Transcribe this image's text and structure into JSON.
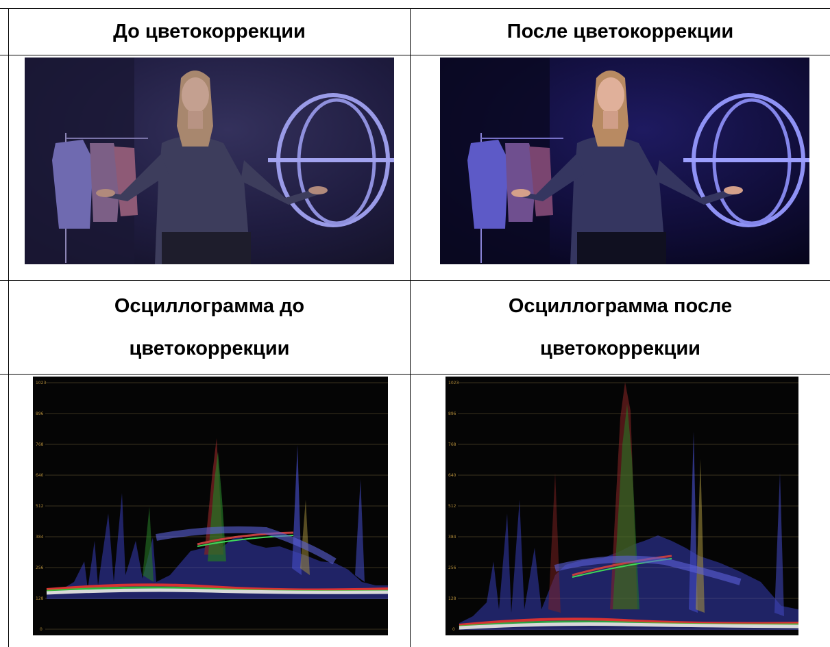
{
  "table": {
    "header_before": "До цветокоррекции",
    "header_after": "После цветокоррекции",
    "scope_before_line1": "Осциллограмма до",
    "scope_before_line2": "цветокоррекции",
    "scope_after_line1": "Осциллограмма после",
    "scope_after_line2": "цветокоррекции"
  },
  "scope_ticks": [
    "1023",
    "896",
    "768",
    "640",
    "512",
    "384",
    "256",
    "128",
    "0"
  ],
  "colors": {
    "border": "#000000",
    "scope_bg": "#050505",
    "grid": "#3a3420",
    "tick_label": "#b38d3a",
    "photo_bg_before": "#1d1b3a",
    "photo_bg_after": "#0c0a28"
  }
}
